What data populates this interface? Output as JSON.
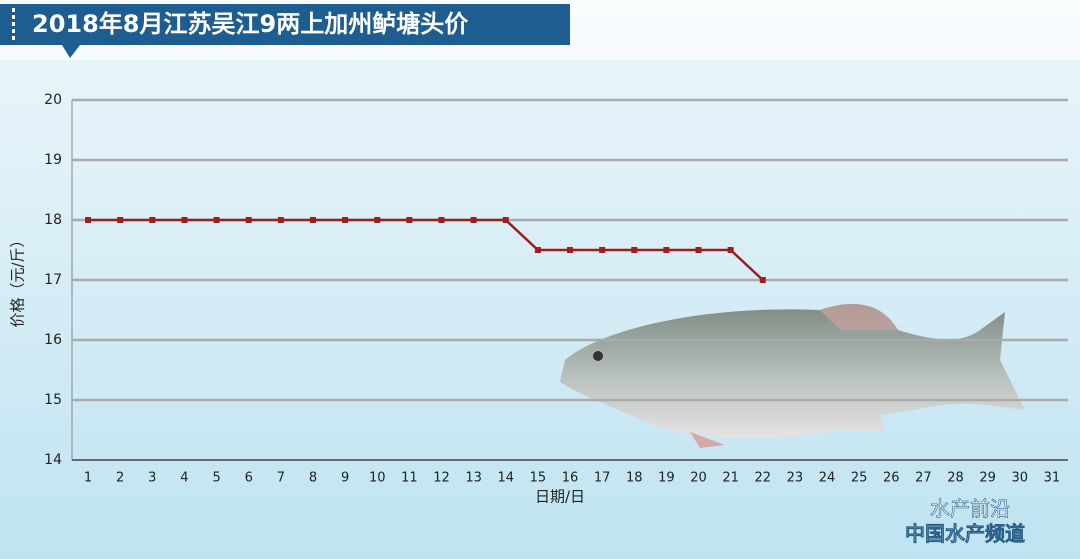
{
  "chart_data": {
    "type": "line",
    "title": "2018年8月江苏吴江9两上加州鲈塘头价",
    "y_label": "价格（元/斤）",
    "x_label": "日期/日",
    "categories": [
      "1",
      "2",
      "3",
      "4",
      "5",
      "6",
      "7",
      "8",
      "9",
      "10",
      "11",
      "12",
      "13",
      "14",
      "15",
      "16",
      "17",
      "18",
      "19",
      "20",
      "21",
      "22",
      "23",
      "24",
      "25",
      "26",
      "27",
      "28",
      "29",
      "30",
      "31"
    ],
    "series": [
      {
        "name": "价格",
        "color": "#9b1f1f",
        "values": [
          18,
          18,
          18,
          18,
          18,
          18,
          18,
          18,
          18,
          18,
          18,
          18,
          18,
          18,
          17.5,
          17.5,
          17.5,
          17.5,
          17.5,
          17.5,
          17.5,
          17,
          null,
          null,
          null,
          null,
          null,
          null,
          null,
          null,
          null
        ]
      }
    ],
    "ylim": [
      14,
      20
    ],
    "yticks": [
      14,
      15,
      16,
      17,
      18,
      19,
      20
    ],
    "grid": true,
    "watermark": [
      "水产前沿",
      "中国水产频道"
    ]
  }
}
